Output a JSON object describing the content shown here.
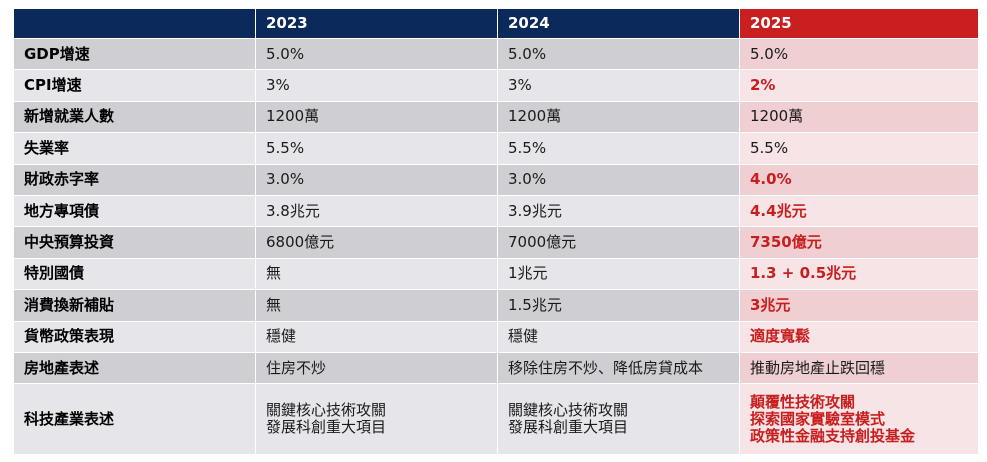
{
  "header": [
    "",
    "2023",
    "2024",
    "2025"
  ],
  "rows": [
    {
      "label": "GDP增速",
      "y2023": "5.0%",
      "y2024": "5.0%",
      "y2025": "5.0%",
      "emph": false
    },
    {
      "label": "CPI增速",
      "y2023": "3%",
      "y2024": "3%",
      "y2025": "2%",
      "emph": true
    },
    {
      "label": "新增就業人數",
      "y2023": "1200萬",
      "y2024": "1200萬",
      "y2025": "1200萬",
      "emph": false
    },
    {
      "label": "失業率",
      "y2023": "5.5%",
      "y2024": "5.5%",
      "y2025": "5.5%",
      "emph": false
    },
    {
      "label": "財政赤字率",
      "y2023": "3.0%",
      "y2024": "3.0%",
      "y2025": "4.0%",
      "emph": true
    },
    {
      "label": "地方專項債",
      "y2023": "3.8兆元",
      "y2024": "3.9兆元",
      "y2025": "4.4兆元",
      "emph": true
    },
    {
      "label": "中央預算投資",
      "y2023": "6800億元",
      "y2024": "7000億元",
      "y2025": "7350億元",
      "emph": true
    },
    {
      "label": "特別國債",
      "y2023": "無",
      "y2024": "1兆元",
      "y2025": "1.3 + 0.5兆元",
      "emph": true
    },
    {
      "label": "消費換新補貼",
      "y2023": "無",
      "y2024": "1.5兆元",
      "y2025": "3兆元",
      "emph": true
    },
    {
      "label": "貨幣政策表現",
      "y2023": "穩健",
      "y2024": "穩健",
      "y2025": "適度寬鬆",
      "emph": true
    },
    {
      "label": "房地產表述",
      "y2023": "住房不炒",
      "y2024": "移除住房不炒、降低房貸成本",
      "y2025": "推動房地產止跌回穩",
      "emph": false
    },
    {
      "label": "科技產業表述",
      "y2023": [
        "關鍵核心技術攻關",
        "發展科創重大項目"
      ],
      "y2024": [
        "關鍵核心技術攻關",
        "發展科創重大項目"
      ],
      "y2025": [
        "顛覆性技術攻關",
        "探索國家實驗室模式",
        "政策性金融支持創投基金"
      ],
      "emph": true
    }
  ]
}
